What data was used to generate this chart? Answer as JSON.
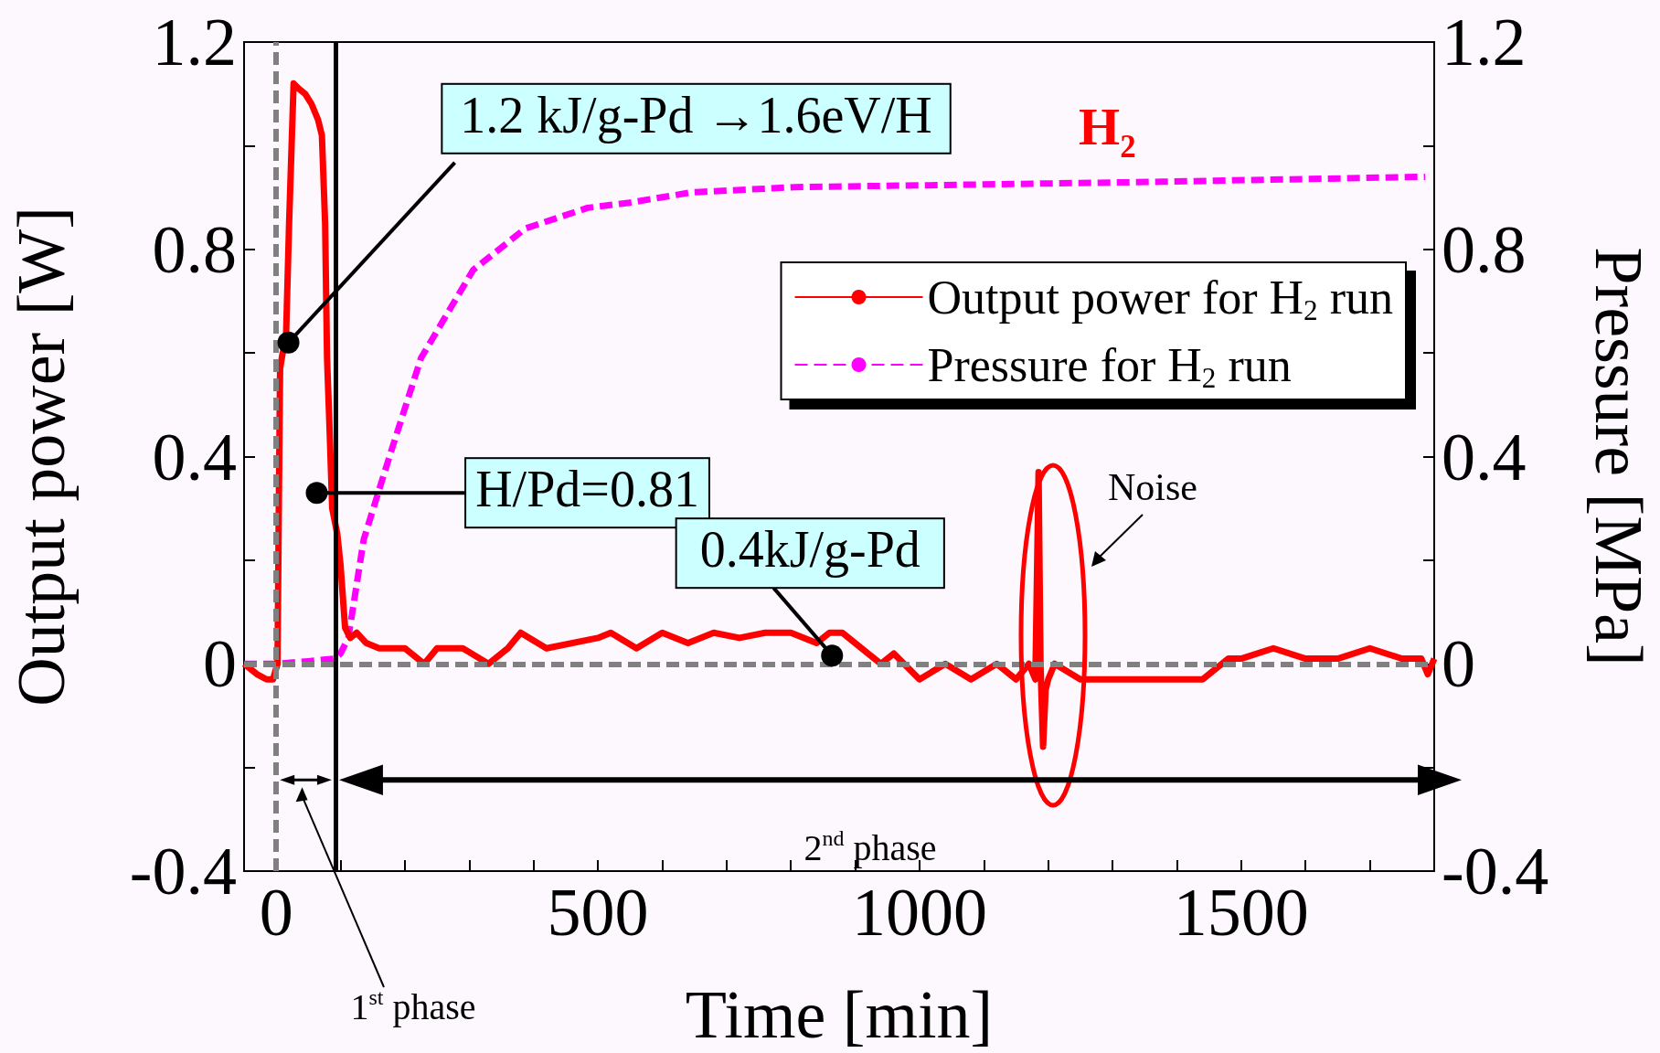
{
  "chart_data": {
    "type": "line",
    "title": "H$_{2}$",
    "xlabel": "Time [min]",
    "ylabel": "Output power [W]",
    "y2label": "Pressure [MPa]",
    "xlim": [
      -50,
      1800
    ],
    "xticks": [
      0,
      {
        "value": 100,
        "label": null
      },
      {
        "value": 200,
        "label": null
      },
      {
        "value": 300,
        "label": null
      },
      {
        "value": 400,
        "label": null
      },
      500,
      {
        "value": 600,
        "label": null
      },
      {
        "value": 700,
        "label": null
      },
      {
        "value": 800,
        "label": null
      },
      {
        "value": 900,
        "label": null
      },
      1000,
      {
        "value": 1100,
        "label": null
      },
      {
        "value": 1200,
        "label": null
      },
      {
        "value": 1300,
        "label": null
      },
      {
        "value": 1400,
        "label": null
      },
      1500,
      {
        "value": 1600,
        "label": null
      },
      {
        "value": 1700,
        "label": null
      }
    ],
    "ylim": [
      -0.4,
      1.2
    ],
    "yticks": [
      -0.4,
      {
        "value": -0.2,
        "label": null
      },
      0,
      {
        "value": 0.2,
        "label": null
      },
      0.4,
      {
        "value": 0.6,
        "label": null
      },
      0.8,
      {
        "value": 1.0,
        "label": null
      },
      1.2
    ],
    "y2lim": [
      -0.4,
      1.2
    ],
    "y2ticks": [
      -0.4,
      {
        "value": -0.2,
        "label": null
      },
      0,
      {
        "value": 0.2,
        "label": null
      },
      0.4,
      {
        "value": 0.6,
        "label": null
      },
      0.8,
      {
        "value": 1.0,
        "label": null
      },
      1.2
    ],
    "grid": false,
    "legend": "top right",
    "marker": "none",
    "series": [
      {
        "name": "Output power for H$_{2}$ run",
        "color": "#ff0000",
        "line_style": "solid",
        "x": [
          -50,
          -30,
          -15,
          -5,
          2,
          4,
          6,
          10,
          15,
          20,
          27,
          35,
          45,
          55,
          65,
          71,
          76,
          79,
          83,
          87,
          95,
          100,
          107,
          115,
          125,
          140,
          160,
          200,
          230,
          250,
          290,
          330,
          360,
          380,
          420,
          500,
          520,
          560,
          600,
          640,
          680,
          720,
          760,
          800,
          840,
          860,
          880,
          920,
          940,
          960,
          1000,
          1040,
          1080,
          1120,
          1150,
          1170,
          1180,
          1185,
          1188,
          1192,
          1196,
          1200,
          1210,
          1250,
          1300,
          1350,
          1400,
          1440,
          1480,
          1500,
          1550,
          1600,
          1650,
          1700,
          1750,
          1780,
          1790,
          1800
        ],
        "values": [
          0.0,
          -0.02,
          -0.03,
          -0.03,
          0.0,
          0.3,
          0.57,
          0.6,
          0.62,
          0.85,
          1.12,
          1.11,
          1.1,
          1.08,
          1.05,
          1.02,
          0.85,
          0.59,
          0.45,
          0.3,
          0.25,
          0.19,
          0.07,
          0.05,
          0.06,
          0.04,
          0.03,
          0.03,
          0.0,
          0.03,
          0.03,
          0.0,
          0.03,
          0.06,
          0.03,
          0.05,
          0.06,
          0.03,
          0.06,
          0.04,
          0.06,
          0.05,
          0.06,
          0.06,
          0.04,
          0.06,
          0.06,
          0.02,
          0.0,
          0.02,
          -0.03,
          0.0,
          -0.03,
          0.0,
          -0.03,
          0.0,
          -0.03,
          0.37,
          0.0,
          -0.16,
          -0.05,
          -0.03,
          0.0,
          -0.03,
          -0.03,
          -0.03,
          -0.03,
          -0.03,
          0.01,
          0.01,
          0.03,
          0.01,
          0.01,
          0.03,
          0.01,
          0.01,
          -0.02,
          0.01
        ]
      },
      {
        "name": "Pressure for H$_{2}$ run",
        "color": "#ff00ff",
        "line_style": "dashed",
        "axis": "y2",
        "x": [
          -50,
          0,
          50,
          90,
          100,
          112,
          136,
          176,
          225,
          306,
          387,
          484,
          549,
          646,
          807,
          1034,
          1358,
          1786
        ],
        "values": [
          0.0,
          0.0,
          0.005,
          0.01,
          0.02,
          0.05,
          0.24,
          0.4,
          0.59,
          0.76,
          0.84,
          0.88,
          0.89,
          0.91,
          0.92,
          0.924,
          0.93,
          0.94
        ]
      }
    ],
    "ref_lines": [
      {
        "axis": "x",
        "value": 0,
        "color": "#808080",
        "line_style": "dashed"
      },
      {
        "axis": "y",
        "value": 0,
        "color": "#808080",
        "line_style": "dashed"
      },
      {
        "axis": "x",
        "value": 92,
        "color": "#000000",
        "line_style": "solid"
      }
    ],
    "annotations": [
      {
        "text": "1.2 kJ/g-Pd →1.6eV/H",
        "x": 19,
        "y": 0.62
      },
      {
        "text": "H/Pd=0.81",
        "x": 63,
        "y": 0.33
      },
      {
        "text": "0.4kJ/g-Pd",
        "x": 864,
        "y": 0.016
      },
      "Noise",
      "1$^{st}$ phase",
      "2$^{nd}$ phase"
    ]
  }
}
